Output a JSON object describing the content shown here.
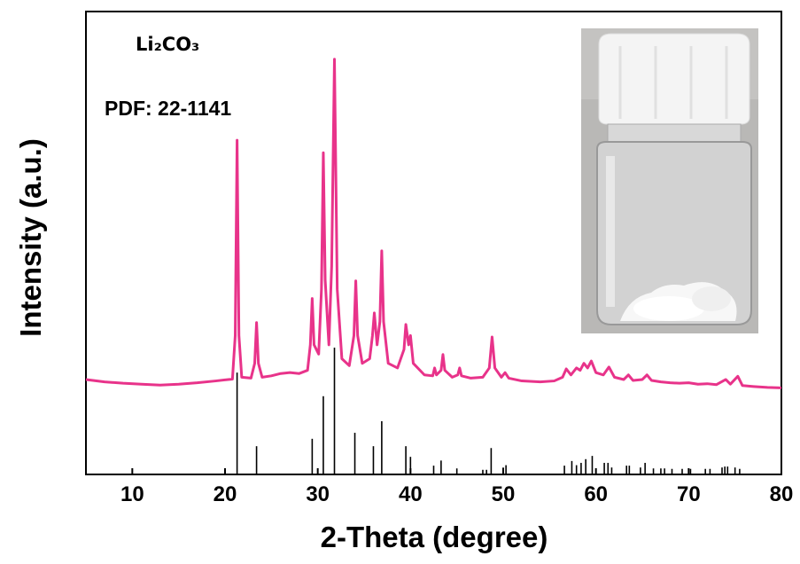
{
  "chart_data": {
    "type": "line",
    "xlabel": "2-Theta (degree)",
    "ylabel": "Intensity (a.u.)",
    "annotations": [
      "Li₂CO₃",
      "PDF: 22-1141"
    ],
    "xlim": [
      5,
      80
    ],
    "xticks": [
      10,
      20,
      30,
      40,
      50,
      60,
      70,
      80
    ],
    "ylim": [
      0,
      100
    ],
    "series": [
      {
        "type": "line",
        "color": "#e8338a",
        "x": [
          5,
          7,
          9,
          11,
          13,
          15,
          17,
          19,
          20.8,
          21.1,
          21.3,
          21.5,
          21.8,
          22.8,
          23.2,
          23.4,
          23.6,
          24,
          25,
          26,
          27,
          28,
          28.9,
          29.2,
          29.4,
          29.6,
          30.1,
          30.4,
          30.6,
          30.8,
          31.2,
          31.5,
          31.8,
          32.1,
          32.6,
          33.4,
          33.9,
          34.1,
          34.3,
          34.8,
          35.6,
          35.9,
          36.1,
          36.4,
          36.7,
          36.9,
          37.1,
          37.6,
          38.6,
          39.3,
          39.5,
          39.8,
          40.0,
          40.3,
          41.5,
          42.4,
          42.6,
          42.8,
          43.3,
          43.5,
          43.7,
          44.5,
          45.1,
          45.3,
          45.5,
          46.5,
          47.8,
          48.5,
          48.8,
          49.1,
          49.8,
          50.2,
          50.6,
          52,
          54,
          55.5,
          56.4,
          56.8,
          57.3,
          57.9,
          58.3,
          58.7,
          59.1,
          59.5,
          60,
          60.8,
          61.4,
          62,
          63,
          63.5,
          64,
          65,
          65.5,
          66,
          67,
          68,
          69,
          70,
          71,
          72,
          73,
          74,
          74.5,
          75.3,
          75.8,
          77,
          78.5,
          80
        ],
        "values": [
          20.5,
          20,
          19.7,
          19.5,
          19.3,
          19.5,
          19.8,
          20.2,
          20.6,
          30,
          72.2,
          30,
          21,
          20.8,
          24,
          32.8,
          24,
          21,
          21.3,
          21.8,
          22,
          21.8,
          22.5,
          28,
          38,
          28,
          26,
          40,
          69.5,
          42,
          28,
          45,
          89.7,
          40,
          25,
          23.5,
          30,
          41.8,
          30,
          24,
          25,
          30,
          34.9,
          28,
          33,
          48.3,
          33,
          24,
          23,
          27,
          32.4,
          28,
          30,
          24,
          21.5,
          21.3,
          23,
          21.5,
          22.5,
          25.9,
          22.5,
          21,
          21.5,
          23,
          21.3,
          20.8,
          21,
          23,
          29.7,
          23,
          21,
          22,
          20.8,
          20.2,
          20,
          20.2,
          21,
          22.8,
          21.5,
          23,
          22.5,
          24,
          23,
          24.5,
          22,
          21.5,
          23.2,
          21,
          20.5,
          21.5,
          20.3,
          20.5,
          21.5,
          20.3,
          20,
          19.8,
          19.7,
          19.8,
          19.5,
          19.6,
          19.4,
          20.5,
          19.5,
          21.2,
          19.2,
          19,
          18.8,
          18.7
        ]
      },
      {
        "type": "stick",
        "color": "#000000",
        "x": [
          21.3,
          23.4,
          29.4,
          30.6,
          31.8,
          34.0,
          36.0,
          36.9,
          39.5,
          40.0,
          42.5,
          43.3,
          45.0,
          47.8,
          48.2,
          48.7,
          50.0,
          50.3,
          56.6,
          57.4,
          57.9,
          58.4,
          58.9,
          59.6,
          60.9,
          61.3,
          61.7,
          63.3,
          63.6,
          64.8,
          65.3,
          66.2,
          67.0,
          67.4,
          68.2,
          69.3,
          70.2,
          71.8,
          72.3,
          73.6,
          73.9,
          74.2,
          75.0,
          75.5
        ],
        "values": [
          22,
          6.1,
          7.7,
          16.9,
          27.4,
          9,
          6.1,
          11.5,
          6.1,
          3.8,
          1.9,
          3,
          1.3,
          1,
          1,
          5.7,
          1.5,
          2,
          1.9,
          2.9,
          2,
          2.5,
          3.3,
          4,
          2.5,
          2.5,
          1.5,
          1.9,
          1.9,
          1.5,
          2.5,
          1.3,
          1.3,
          1.3,
          1.2,
          1.2,
          1.2,
          1.2,
          1.2,
          1.5,
          1.7,
          1.7,
          1.5,
          1.2
        ]
      }
    ]
  }
}
